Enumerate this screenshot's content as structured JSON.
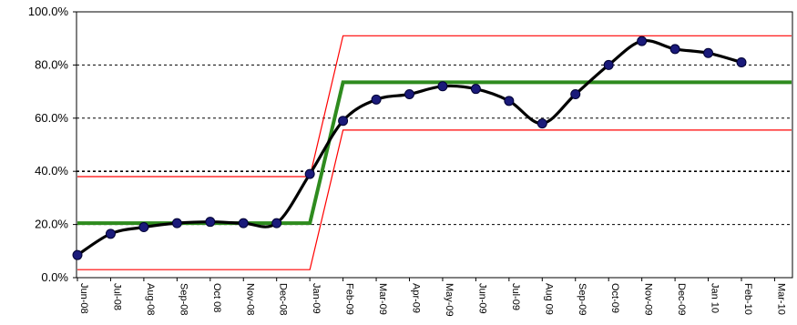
{
  "chart_data": {
    "type": "line",
    "categories": [
      "Jun-08",
      "Jul-08",
      "Aug-08",
      "Sep-08",
      "Oct 08",
      "Nov-08",
      "Dec-08",
      "Jan-09",
      "Feb-09",
      "Mar-09",
      "Apr-09",
      "May-09",
      "Jun-09",
      "Jul-09",
      "Aug 09",
      "Sep-09",
      "Oct-09",
      "Nov-09",
      "Dec-09",
      "Jan 10",
      "Feb-10",
      "Mar-10"
    ],
    "ylim": [
      0,
      100
    ],
    "yticks": [
      "0.0%",
      "20.0%",
      "40.0%",
      "60.0%",
      "80.0%",
      "100.0%"
    ],
    "grid": "horizontal dashed",
    "series": [
      {
        "role": "data",
        "color": "#000000",
        "marker_color": "#1a1a7a",
        "smooth": true,
        "values": [
          8.5,
          16.5,
          19,
          20.5,
          21,
          20.5,
          20.5,
          39,
          59,
          67,
          69,
          72,
          71,
          66.5,
          58,
          69,
          80,
          89,
          86,
          84.5,
          81,
          null
        ]
      },
      {
        "role": "mean",
        "color": "#2e8b1e",
        "values": [
          20.5,
          20.5,
          20.5,
          20.5,
          20.5,
          20.5,
          20.5,
          20.5,
          73.5,
          73.5,
          73.5,
          73.5,
          73.5,
          73.5,
          73.5,
          73.5,
          73.5,
          73.5,
          73.5,
          73.5,
          73.5,
          73.5
        ]
      },
      {
        "role": "upper-limit",
        "color": "#ff0000",
        "values": [
          38,
          38,
          38,
          38,
          38,
          38,
          38,
          38,
          91,
          91,
          91,
          91,
          91,
          91,
          91,
          91,
          91,
          91,
          91,
          91,
          91,
          91
        ]
      },
      {
        "role": "lower-limit",
        "color": "#ff0000",
        "values": [
          3,
          3,
          3,
          3,
          3,
          3,
          3,
          3,
          55.5,
          55.5,
          55.5,
          55.5,
          55.5,
          55.5,
          55.5,
          55.5,
          55.5,
          55.5,
          55.5,
          55.5,
          55.5,
          55.5
        ]
      }
    ]
  }
}
